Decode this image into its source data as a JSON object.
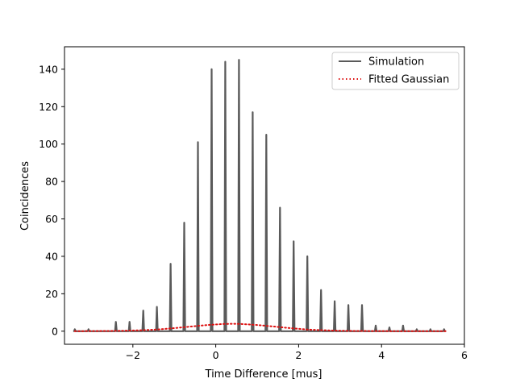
{
  "chart_data": {
    "type": "line",
    "title": "",
    "xlabel": "Time Difference [mus]",
    "ylabel": "Coincidences",
    "xlim": [
      -3.65,
      6.0
    ],
    "ylim": [
      -7,
      152
    ],
    "xticks": [
      -2,
      0,
      2,
      4,
      6
    ],
    "xtick_labels": [
      "−2",
      "0",
      "2",
      "4",
      "6"
    ],
    "yticks": [
      0,
      20,
      40,
      60,
      80,
      100,
      120,
      140
    ],
    "ytick_labels": [
      "0",
      "20",
      "40",
      "60",
      "80",
      "100",
      "120",
      "140"
    ],
    "grid": false,
    "legend_position": "top-right",
    "series": [
      {
        "name": "Simulation",
        "color": "#5a5a5a",
        "style": "solid",
        "x": [
          -3.4,
          -3.07,
          -2.74,
          -2.41,
          -2.08,
          -1.75,
          -1.42,
          -1.09,
          -0.76,
          -0.43,
          -0.1,
          0.23,
          0.56,
          0.89,
          1.22,
          1.55,
          1.88,
          2.21,
          2.54,
          2.87,
          3.2,
          3.53,
          3.86,
          4.19,
          4.52,
          4.85,
          5.18,
          5.51
        ],
        "values": [
          1,
          1,
          0,
          5,
          5,
          11,
          13,
          36,
          58,
          101,
          140,
          144,
          145,
          117,
          105,
          66,
          48,
          40,
          22,
          16,
          14,
          14,
          3,
          2,
          3,
          1,
          1,
          1
        ]
      },
      {
        "name": "Fitted Gaussian",
        "color": "#dd1111",
        "style": "dotted",
        "x": [
          -3.4,
          -3.0,
          -2.6,
          -2.2,
          -1.8,
          -1.4,
          -1.0,
          -0.6,
          -0.2,
          0.2,
          0.4,
          0.6,
          1.0,
          1.4,
          1.8,
          2.2,
          2.6,
          3.0,
          3.4,
          3.8,
          4.2,
          4.6,
          5.0,
          5.4,
          5.55
        ],
        "values": [
          0.0,
          0.05,
          0.1,
          0.25,
          0.5,
          0.9,
          1.6,
          2.5,
          3.3,
          3.85,
          3.95,
          3.85,
          3.3,
          2.5,
          1.6,
          0.9,
          0.5,
          0.25,
          0.1,
          0.05,
          0.02,
          0.0,
          0.0,
          0.0,
          0.0
        ]
      }
    ]
  }
}
